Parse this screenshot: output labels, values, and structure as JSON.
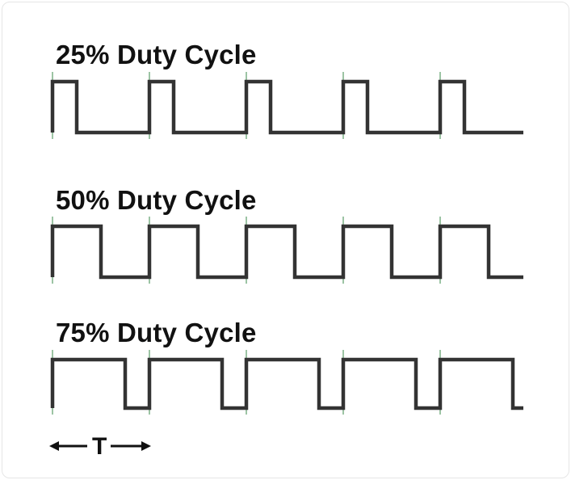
{
  "panels": [
    {
      "title": "25% Duty Cycle",
      "duty": 0.25
    },
    {
      "title": "50% Duty Cycle",
      "duty": 0.5
    },
    {
      "title": "75% Duty Cycle",
      "duty": 0.75
    }
  ],
  "cycles": 5,
  "period_label": "T",
  "colors": {
    "wave": "#333333",
    "tick": "#3a8a4a"
  }
}
